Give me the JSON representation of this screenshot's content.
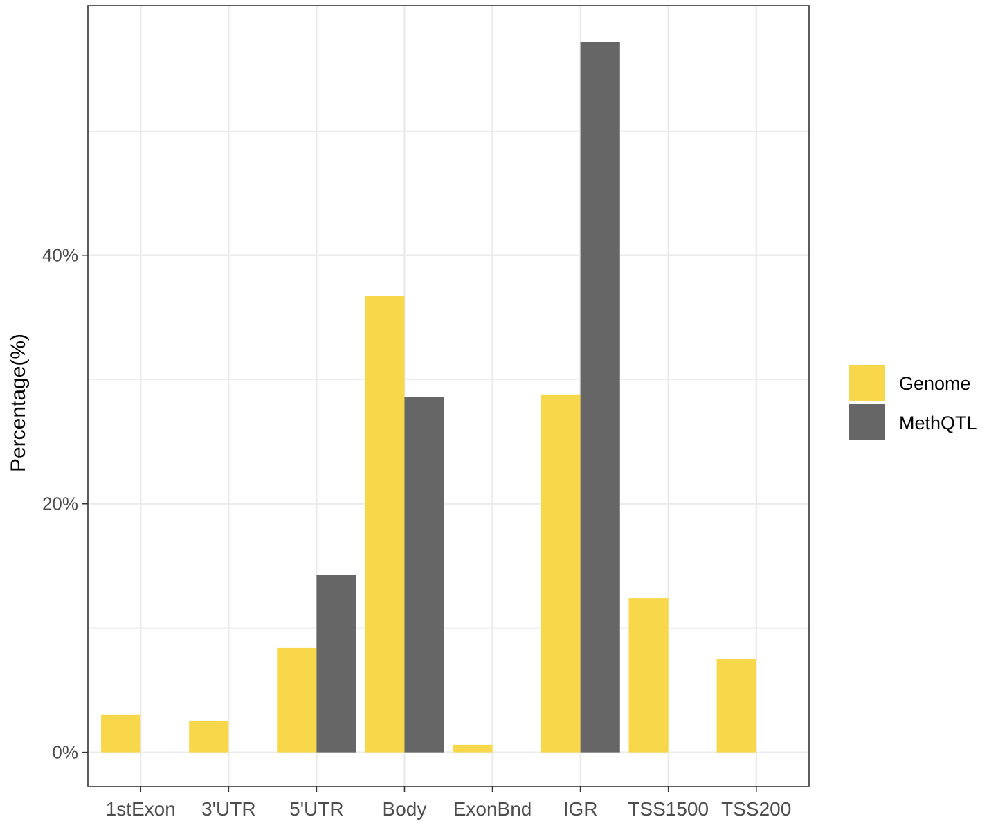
{
  "chart_data": {
    "type": "bar",
    "title": "",
    "xlabel": "",
    "ylabel": "Percentage(%)",
    "categories": [
      "1stExon",
      "3'UTR",
      "5'UTR",
      "Body",
      "ExonBnd",
      "IGR",
      "TSS1500",
      "TSS200"
    ],
    "series": [
      {
        "name": "Genome",
        "color": "#F9D74B",
        "values": [
          3.0,
          2.5,
          8.4,
          36.7,
          0.6,
          28.8,
          12.4,
          7.5
        ]
      },
      {
        "name": "MethQTL",
        "color": "#666666",
        "values": [
          0,
          0,
          14.3,
          28.6,
          0,
          57.2,
          0,
          0
        ]
      }
    ],
    "ylim": [
      -2.75,
      60.1
    ],
    "yticks": [
      0,
      20,
      40
    ],
    "ytick_labels": [
      "0%",
      "20%",
      "40%"
    ],
    "minor_gridlines": [
      10,
      30,
      50
    ],
    "grid": true,
    "legend_position": "right",
    "colors": {
      "background": "#FFFFFF",
      "grid": "#EBEBEB",
      "axis": "#333333",
      "tick_label": "#4D4D4D"
    }
  }
}
